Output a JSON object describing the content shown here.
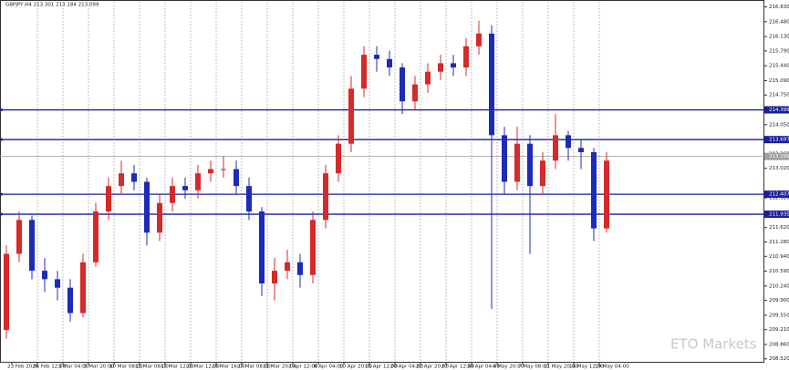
{
  "chart_data": {
    "type": "candlestick",
    "title": "GBPJPY,H4  213.301 213.184 213.099",
    "watermark": "ETO Markets",
    "categories": [
      "23 Feb 2026",
      null,
      "26 Feb 12:00",
      null,
      "3 Mar 04:00",
      null,
      "5 Mar 20:00",
      null,
      "10 Mar 08:00",
      null,
      "13 Mar 08:00",
      null,
      "17 Mar 12:00",
      null,
      "20 Mar 12:00",
      null,
      "24 Mar 16:00",
      null,
      "27 Mar 08:00",
      null,
      "31 Mar 20:00",
      null,
      "3 Apr 12:00",
      null,
      "8 Apr 04:00",
      null,
      "10 Apr 20:00",
      null,
      "15 Apr 12:00",
      null,
      "20 Apr 04:00",
      null,
      "22 Apr 20:00",
      null,
      "27 Apr 12:00",
      null,
      "30 Apr 04:00",
      null,
      "4 May 20:00",
      null,
      "7 May 08:00",
      null,
      "11 May 20:00",
      null,
      "14 May 12:00",
      null,
      "19 May 04:00",
      null
    ],
    "open": [
      209.2,
      211.0,
      211.8,
      210.6,
      210.4,
      210.2,
      209.6,
      210.8,
      212.0,
      212.6,
      212.9,
      212.7,
      211.5,
      212.2,
      212.6,
      212.5,
      212.9,
      213.0,
      213.0,
      212.6,
      212.0,
      210.3,
      210.6,
      210.8,
      210.5,
      211.8,
      212.9,
      213.6,
      214.9,
      215.7,
      215.6,
      215.4,
      214.6,
      215.0,
      215.3,
      215.5,
      215.4,
      215.9,
      216.2,
      213.8,
      212.7,
      213.6,
      212.6,
      213.2,
      213.8,
      213.5,
      213.4,
      211.6
    ],
    "high": [
      211.2,
      212.0,
      211.9,
      210.9,
      210.6,
      210.4,
      211.0,
      212.2,
      212.8,
      213.2,
      213.1,
      212.8,
      212.4,
      212.8,
      212.8,
      213.1,
      213.2,
      213.3,
      213.2,
      212.8,
      212.1,
      210.9,
      211.1,
      211.0,
      212.0,
      213.1,
      213.8,
      215.2,
      215.9,
      215.9,
      215.8,
      215.5,
      215.2,
      215.5,
      215.7,
      215.7,
      216.1,
      216.5,
      216.4,
      214.0,
      214.0,
      213.8,
      213.4,
      214.3,
      213.9,
      213.7,
      213.5,
      213.4
    ],
    "low": [
      209.0,
      210.8,
      210.4,
      210.1,
      209.9,
      209.4,
      209.5,
      210.7,
      211.8,
      212.4,
      212.5,
      211.2,
      211.3,
      212.0,
      212.3,
      212.3,
      212.7,
      212.8,
      212.4,
      211.8,
      210.0,
      209.9,
      210.4,
      210.2,
      210.3,
      211.6,
      212.7,
      213.4,
      214.7,
      215.3,
      215.2,
      214.3,
      214.4,
      214.8,
      215.1,
      215.2,
      215.2,
      215.7,
      209.7,
      212.4,
      212.5,
      211.0,
      212.4,
      213.0,
      213.2,
      213.0,
      211.3,
      211.5
    ],
    "close": [
      211.0,
      211.8,
      210.6,
      210.4,
      210.2,
      209.6,
      210.8,
      212.0,
      212.6,
      212.9,
      212.7,
      211.5,
      212.2,
      212.6,
      212.5,
      212.9,
      213.0,
      213.0,
      212.6,
      212.0,
      210.3,
      210.6,
      210.8,
      210.5,
      211.8,
      212.9,
      213.6,
      214.9,
      215.7,
      215.6,
      215.4,
      214.6,
      215.0,
      215.3,
      215.5,
      215.4,
      215.9,
      216.2,
      213.8,
      212.7,
      213.6,
      212.6,
      213.2,
      213.8,
      213.5,
      213.4,
      211.6,
      213.2
    ],
    "up_color": "#d42a2a",
    "down_color": "#1c2bb8",
    "levels": [
      214.399,
      213.697,
      212.407,
      211.935
    ],
    "level_color": "#1a1f9c",
    "price_line": 213.299,
    "price_line_color": "#a0a0a0",
    "ylim": [
      208.45,
      216.95
    ],
    "yticks": [
      {
        "value": 216.83,
        "label": "216.830"
      },
      {
        "value": 216.48,
        "label": "216.480"
      },
      {
        "value": 216.13,
        "label": "216.130"
      },
      {
        "value": 215.79,
        "label": "215.790"
      },
      {
        "value": 215.44,
        "label": "215.440"
      },
      {
        "value": 215.09,
        "label": "215.090"
      },
      {
        "value": 214.75,
        "label": "214.750"
      },
      {
        "value": 214.05,
        "label": "214.050"
      },
      {
        "value": 213.36,
        "label": "213.360"
      },
      {
        "value": 213.02,
        "label": "213.020"
      },
      {
        "value": 212.32,
        "label": "212.320"
      },
      {
        "value": 211.62,
        "label": "211.620"
      },
      {
        "value": 211.28,
        "label": "211.280"
      },
      {
        "value": 210.94,
        "label": "210.940"
      },
      {
        "value": 210.59,
        "label": "210.590"
      },
      {
        "value": 210.24,
        "label": "210.240"
      },
      {
        "value": 209.9,
        "label": "209.900"
      },
      {
        "value": 209.55,
        "label": "209.550"
      },
      {
        "value": 209.21,
        "label": "209.210"
      },
      {
        "value": 208.86,
        "label": "208.860"
      },
      {
        "value": 208.52,
        "label": "208.520"
      }
    ],
    "grid": true
  }
}
